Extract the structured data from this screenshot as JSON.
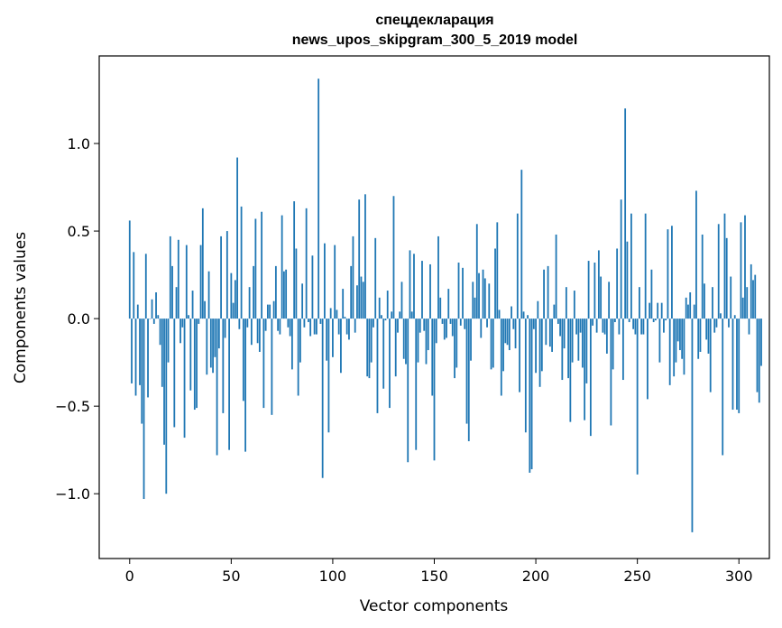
{
  "chart_data": {
    "type": "bar",
    "title": [
      "спецдекларация",
      "news_upos_skipgram_300_5_2019 model"
    ],
    "xlabel": "Vector components",
    "ylabel": "Components values",
    "xlim": [
      -15,
      315
    ],
    "ylim": [
      -1.37,
      1.5
    ],
    "x_ticks": [
      0,
      50,
      100,
      150,
      200,
      250,
      300
    ],
    "y_ticks": [
      -1.0,
      -0.5,
      0.0,
      0.5,
      1.0
    ],
    "y_tick_labels": [
      "−1.0",
      "−0.5",
      "0.0",
      "0.5",
      "1.0"
    ],
    "bar_color": "#1f77b4",
    "grid": false,
    "values": [
      0.56,
      -0.37,
      0.38,
      -0.44,
      0.08,
      -0.38,
      -0.6,
      -1.03,
      0.37,
      -0.45,
      0.0,
      0.11,
      -0.03,
      0.15,
      0.02,
      -0.15,
      -0.39,
      -0.72,
      -1.0,
      -0.25,
      0.47,
      0.3,
      -0.62,
      0.18,
      0.45,
      -0.14,
      -0.05,
      -0.68,
      0.42,
      0.02,
      -0.41,
      0.16,
      -0.52,
      -0.51,
      -0.03,
      0.42,
      0.63,
      0.1,
      -0.32,
      0.27,
      -0.28,
      -0.31,
      -0.22,
      -0.78,
      -0.17,
      0.47,
      -0.54,
      -0.11,
      0.5,
      -0.75,
      0.26,
      0.09,
      0.22,
      0.92,
      -0.06,
      0.64,
      -0.47,
      -0.76,
      -0.05,
      0.18,
      -0.15,
      0.3,
      0.57,
      -0.14,
      -0.19,
      0.61,
      -0.51,
      -0.07,
      0.08,
      0.08,
      -0.55,
      0.1,
      0.3,
      -0.07,
      -0.09,
      0.59,
      0.27,
      0.28,
      -0.05,
      -0.1,
      -0.29,
      0.67,
      0.4,
      -0.44,
      -0.25,
      0.2,
      -0.05,
      0.63,
      -0.02,
      -0.1,
      0.36,
      -0.09,
      -0.09,
      1.37,
      -0.03,
      -0.91,
      0.43,
      -0.24,
      -0.65,
      0.06,
      -0.22,
      0.42,
      0.05,
      -0.09,
      -0.31,
      0.17,
      0.01,
      -0.09,
      -0.12,
      0.3,
      0.47,
      -0.08,
      0.19,
      0.68,
      0.24,
      0.21,
      0.71,
      -0.33,
      -0.34,
      -0.25,
      -0.05,
      0.46,
      -0.54,
      0.12,
      0.02,
      -0.4,
      -0.01,
      0.16,
      -0.51,
      0.04,
      0.7,
      -0.33,
      -0.08,
      0.04,
      0.21,
      -0.23,
      -0.26,
      -0.82,
      0.39,
      0.04,
      0.37,
      -0.75,
      -0.25,
      -0.08,
      0.33,
      -0.07,
      -0.26,
      -0.18,
      0.31,
      -0.44,
      -0.81,
      -0.14,
      0.47,
      0.12,
      -0.03,
      -0.12,
      -0.11,
      0.17,
      -0.03,
      -0.1,
      -0.34,
      -0.28,
      0.32,
      -0.04,
      0.29,
      -0.06,
      -0.6,
      -0.7,
      -0.24,
      0.21,
      0.12,
      0.54,
      0.26,
      -0.11,
      0.28,
      0.23,
      -0.05,
      0.2,
      -0.29,
      -0.28,
      0.4,
      0.55,
      0.05,
      -0.44,
      -0.3,
      -0.14,
      -0.15,
      -0.18,
      0.07,
      -0.06,
      -0.17,
      0.6,
      -0.42,
      0.85,
      0.04,
      -0.65,
      0.02,
      -0.88,
      -0.86,
      -0.06,
      -0.31,
      0.1,
      -0.39,
      -0.3,
      0.28,
      -0.15,
      0.3,
      -0.16,
      -0.19,
      0.08,
      0.48,
      -0.03,
      -0.1,
      -0.35,
      -0.17,
      0.18,
      -0.34,
      -0.59,
      -0.25,
      0.16,
      -0.09,
      -0.24,
      -0.08,
      -0.28,
      -0.58,
      -0.37,
      0.33,
      -0.67,
      -0.04,
      0.32,
      -0.08,
      0.39,
      0.24,
      -0.08,
      -0.09,
      -0.2,
      0.21,
      -0.61,
      -0.29,
      -0.02,
      0.4,
      -0.09,
      0.68,
      -0.35,
      1.2,
      0.44,
      -0.02,
      0.6,
      -0.06,
      -0.09,
      -0.89,
      0.18,
      -0.09,
      -0.09,
      0.6,
      -0.46,
      0.09,
      0.28,
      -0.02,
      -0.01,
      0.09,
      -0.25,
      0.09,
      -0.08,
      -0.01,
      0.51,
      -0.38,
      0.53,
      -0.33,
      -0.25,
      -0.13,
      -0.18,
      -0.23,
      -0.32,
      0.12,
      0.08,
      0.15,
      -1.22,
      0.08,
      0.73,
      -0.23,
      -0.19,
      0.48,
      0.2,
      -0.12,
      -0.2,
      -0.42,
      0.18,
      -0.08,
      -0.05,
      0.54,
      0.03,
      -0.78,
      0.6,
      0.46,
      -0.05,
      0.24,
      -0.52,
      0.02,
      -0.52,
      -0.54,
      0.55,
      0.12,
      0.59,
      0.18,
      -0.09,
      0.31,
      0.22,
      0.25,
      -0.42,
      -0.48,
      -0.27
    ]
  }
}
